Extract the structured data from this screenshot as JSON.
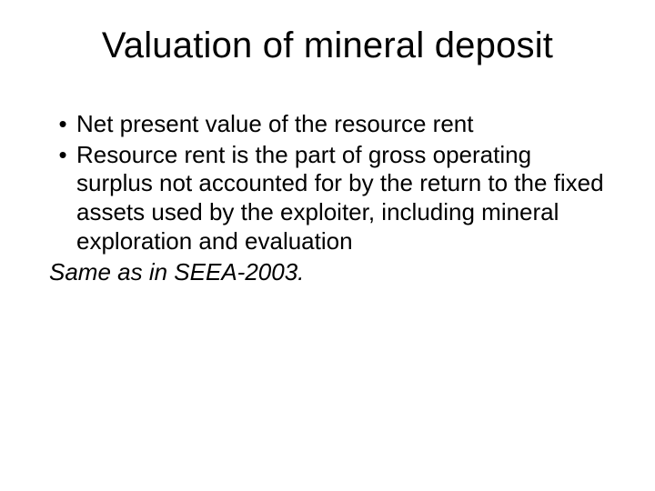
{
  "slide": {
    "title": "Valuation of mineral deposit",
    "title_fontsize": 40,
    "body_fontsize": 26,
    "text_color": "#000000",
    "background_color": "#ffffff",
    "bullets": [
      {
        "marker": "•",
        "text": "Net present value of the resource rent"
      },
      {
        "marker": "•",
        "text": "Resource rent is the part of gross operating surplus not accounted for by the return to the fixed assets used by the exploiter, including mineral exploration and evaluation"
      }
    ],
    "closing_text": "Same as in SEEA-2003.",
    "closing_style": "italic"
  }
}
